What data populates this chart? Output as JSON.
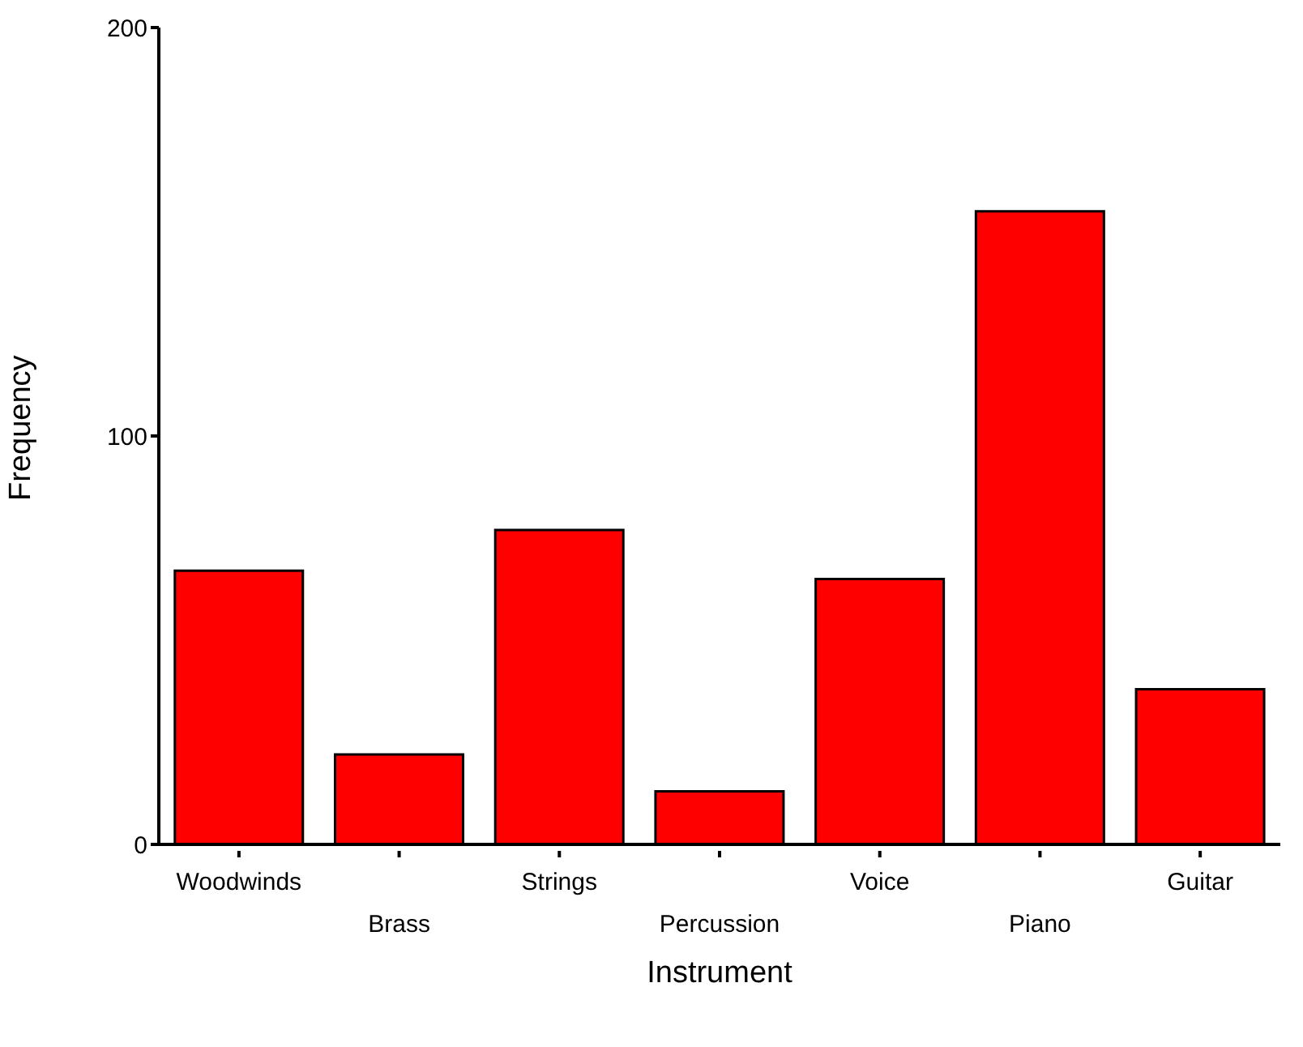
{
  "chart_data": {
    "type": "bar",
    "xlabel": "Instrument",
    "ylabel": "Frequency",
    "categories": [
      "Woodwinds",
      "Brass",
      "Strings",
      "Percussion",
      "Voice",
      "Piano",
      "Guitar"
    ],
    "values": [
      67,
      22,
      77,
      13,
      65,
      155,
      38
    ],
    "color": "#ff0000",
    "ylim": [
      0,
      200
    ],
    "yticks": [
      0,
      100,
      200
    ],
    "grid": false,
    "legend": false
  }
}
